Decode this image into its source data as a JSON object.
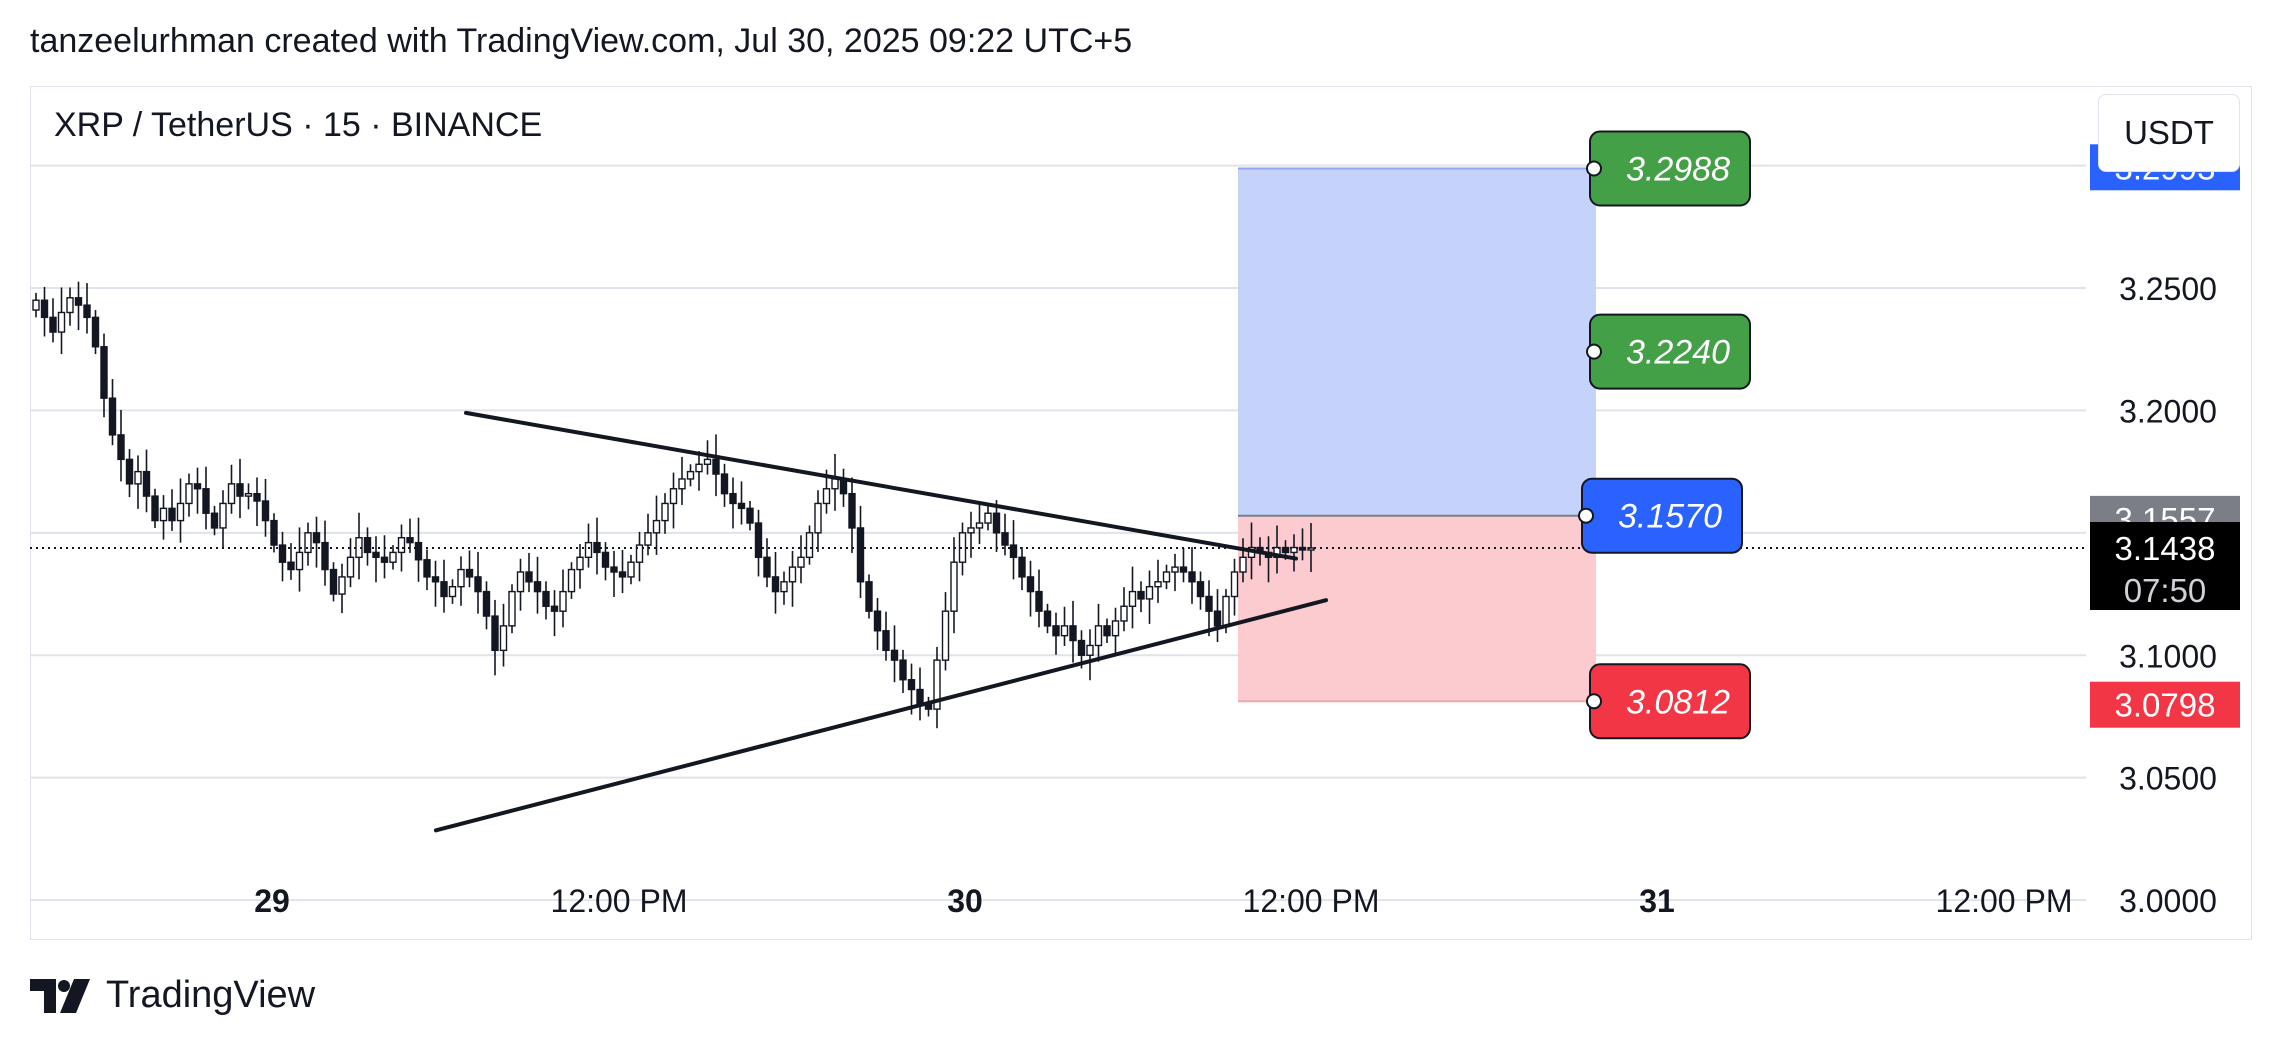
{
  "header": {
    "attribution": "tanzeelurhman created with TradingView.com, Jul 30, 2025 09:22 UTC+5"
  },
  "chart_header": {
    "symbol_title": "XRP / TetherUS · 15 · BINANCE",
    "currency_button": "USDT"
  },
  "footer": {
    "brand": "TradingView"
  },
  "colors": {
    "candle": "#131722",
    "grid": "#e0e3eb",
    "profit_zone": "#c5d3fb",
    "loss_zone": "#fbcbd0",
    "target_box": "#43a047",
    "entry_box": "#2962ff",
    "stop_box": "#f23645",
    "axis_blue": "#2962ff",
    "axis_gray": "#7b7e87",
    "axis_black": "#000000",
    "axis_red": "#f23645"
  },
  "chart_data": {
    "type": "candlestick",
    "symbol": "XRPUSDT",
    "interval": "15",
    "exchange": "BINANCE",
    "x_axis_ticks": [
      "29",
      "12:00 PM",
      "30",
      "12:00 PM",
      "31",
      "12:00 PM"
    ],
    "y_axis_ticks": [
      "3.2500",
      "3.2000",
      "3.1000",
      "3.0500",
      "3.0000"
    ],
    "ylim": [
      2.9837,
      3.3325
    ],
    "price_series_close": [
      3.245,
      3.238,
      3.232,
      3.24,
      3.246,
      3.243,
      3.238,
      3.226,
      3.205,
      3.19,
      3.18,
      3.17,
      3.175,
      3.165,
      3.155,
      3.16,
      3.155,
      3.162,
      3.17,
      3.168,
      3.158,
      3.152,
      3.162,
      3.17,
      3.165,
      3.166,
      3.163,
      3.155,
      3.145,
      3.138,
      3.135,
      3.142,
      3.15,
      3.146,
      3.135,
      3.125,
      3.132,
      3.14,
      3.148,
      3.142,
      3.14,
      3.138,
      3.142,
      3.148,
      3.146,
      3.139,
      3.132,
      3.13,
      3.124,
      3.128,
      3.135,
      3.132,
      3.126,
      3.116,
      3.102,
      3.112,
      3.126,
      3.134,
      3.13,
      3.126,
      3.12,
      3.118,
      3.126,
      3.135,
      3.14,
      3.146,
      3.142,
      3.136,
      3.134,
      3.132,
      3.138,
      3.145,
      3.15,
      3.155,
      3.162,
      3.168,
      3.172,
      3.175,
      3.178,
      3.18,
      3.174,
      3.166,
      3.162,
      3.16,
      3.154,
      3.14,
      3.132,
      3.126,
      3.13,
      3.136,
      3.14,
      3.15,
      3.162,
      3.168,
      3.172,
      3.166,
      3.152,
      3.13,
      3.118,
      3.11,
      3.102,
      3.098,
      3.09,
      3.086,
      3.08,
      3.078,
      3.098,
      3.118,
      3.138,
      3.15,
      3.152,
      3.154,
      3.158,
      3.15,
      3.145,
      3.14,
      3.132,
      3.126,
      3.118,
      3.112,
      3.108,
      3.112,
      3.106,
      3.1,
      3.104,
      3.112,
      3.108,
      3.114,
      3.12,
      3.126,
      3.123,
      3.128,
      3.13,
      3.134,
      3.136,
      3.134,
      3.13,
      3.124,
      3.118,
      3.112,
      3.124,
      3.134,
      3.14,
      3.144,
      3.142,
      3.14,
      3.144,
      3.142,
      3.144,
      3.143,
      3.1438
    ],
    "trendlines": [
      {
        "name": "upper",
        "start_index": 43,
        "start_price": 3.199,
        "end_index": 129,
        "end_price": 3.1395
      },
      {
        "name": "lower",
        "start_index": 40,
        "start_price": 3.0285,
        "end_index": 132,
        "end_price": 3.1225
      }
    ],
    "position": {
      "type": "long",
      "entry": "3.1570",
      "targets": [
        "3.2988",
        "3.2240"
      ],
      "stop": "3.0812"
    },
    "axis_labels": [
      {
        "value": "3.2993",
        "style": "blue"
      },
      {
        "value": "3.1557",
        "style": "gray"
      },
      {
        "value": "3.1438",
        "countdown": "07:50",
        "style": "black"
      },
      {
        "value": "3.0798",
        "style": "red"
      }
    ]
  }
}
